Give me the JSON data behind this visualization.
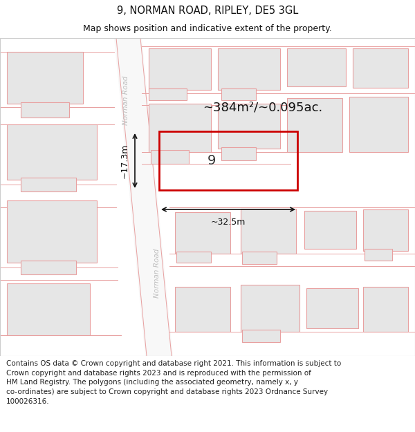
{
  "title": "9, NORMAN ROAD, RIPLEY, DE5 3GL",
  "subtitle": "Map shows position and indicative extent of the property.",
  "footer": "Contains OS data © Crown copyright and database right 2021. This information is subject to\nCrown copyright and database rights 2023 and is reproduced with the permission of\nHM Land Registry. The polygons (including the associated geometry, namely x, y\nco-ordinates) are subject to Crown copyright and database rights 2023 Ordnance Survey\n100026316.",
  "map_bg": "#f7f7f7",
  "building_fill": "#e6e6e6",
  "building_edge": "#e8a0a0",
  "road_color": "#f0f0f0",
  "road_label_color": "#c0c0c0",
  "highlight_color": "#cc0000",
  "highlight_lw": 2.0,
  "area_label": "~384m²/~0.095ac.",
  "width_label": "~32.5m",
  "height_label": "~17.3m",
  "number_label": "9",
  "title_fontsize": 10.5,
  "subtitle_fontsize": 9.0,
  "footer_fontsize": 7.5
}
